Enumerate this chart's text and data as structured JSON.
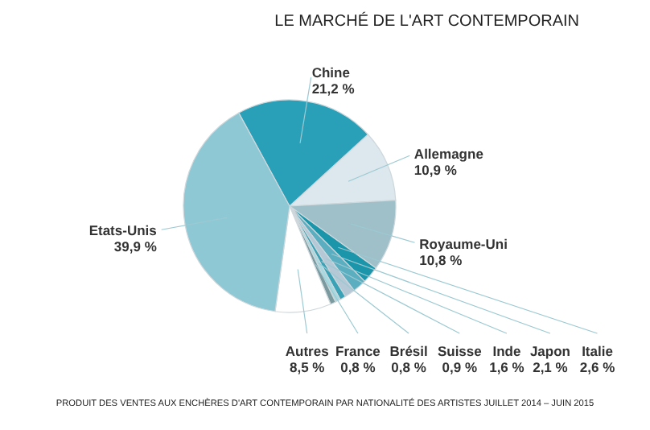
{
  "chart_data": {
    "type": "pie",
    "title": "LE MARCHÉ DE L'ART CONTEMPORAIN",
    "categories": [
      "Chine",
      "Allemagne",
      "Royaume-Uni",
      "Italie",
      "Japon",
      "Inde",
      "Suisse",
      "Brésil",
      "France",
      "Autres",
      "Etats-Unis"
    ],
    "values": [
      21.2,
      10.9,
      10.8,
      2.6,
      2.1,
      1.6,
      0.9,
      0.8,
      0.8,
      8.5,
      39.9
    ],
    "value_labels": [
      "21,2 %",
      "10,9 %",
      "10,8 %",
      "2,6 %",
      "2,1 %",
      "1,6 %",
      "0,9 %",
      "0,8 %",
      "0,8 %",
      "8,5 %",
      "39,9 %"
    ],
    "colors": [
      "#2aa0b8",
      "#dce8ee",
      "#9fc0c8",
      "#1a95aa",
      "#5aaec0",
      "#b4c8d6",
      "#3aa2b6",
      "#a8d8e0",
      "#7a9aa0",
      "#ffffff",
      "#8ec8d4"
    ],
    "annotations": [
      "PRODUIT DES VENTES AUX ENCHÈRES D'ART CONTEMPORAIN PAR NATIONALITÉ DES ARTISTES JUILLET 2014 – JUIN 2015"
    ]
  }
}
